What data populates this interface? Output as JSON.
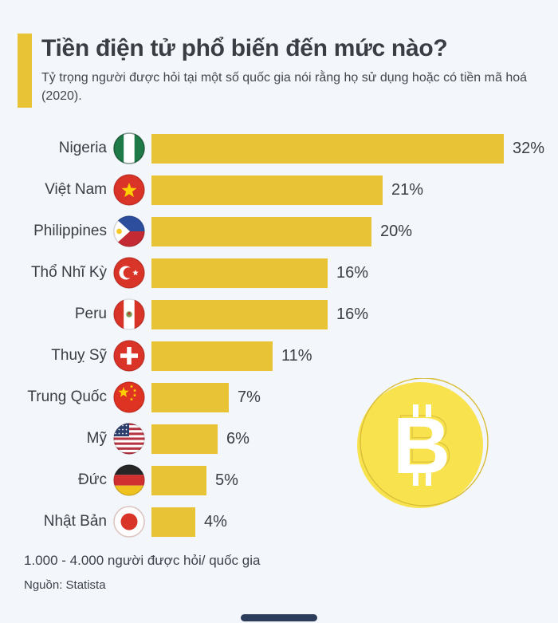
{
  "header": {
    "title": "Tiền điện tử phổ biến đến mức nào?",
    "subtitle": "Tỷ trọng người được hỏi tại một số quốc gia nói rằng họ sử dụng hoặc có tiền mã hoá (2020)."
  },
  "chart_data": {
    "type": "bar",
    "orientation": "horizontal",
    "title": "Tiền điện tử phổ biến đến mức nào?",
    "subtitle": "Tỷ trọng người được hỏi tại một số quốc gia nói rằng họ sử dụng hoặc có tiền mã hoá (2020).",
    "categories": [
      "Nigeria",
      "Việt Nam",
      "Philippines",
      "Thổ Nhĩ Kỳ",
      "Peru",
      "Thuỵ Sỹ",
      "Trung Quốc",
      "Mỹ",
      "Đức",
      "Nhật Bản"
    ],
    "values": [
      32,
      21,
      20,
      16,
      16,
      11,
      7,
      6,
      5,
      4
    ],
    "value_labels": [
      "32%",
      "21%",
      "20%",
      "16%",
      "16%",
      "11%",
      "7%",
      "6%",
      "5%",
      "4%"
    ],
    "flags": [
      "nigeria",
      "vietnam",
      "philippines",
      "turkey",
      "peru",
      "switzerland",
      "china",
      "usa",
      "germany",
      "japan"
    ],
    "unit": "%",
    "xlim": [
      0,
      32
    ],
    "grid": false,
    "legend": "none",
    "bar_color": "#e9c336"
  },
  "decor": {
    "bitcoin_coin": {
      "icon": "bitcoin-coin-icon",
      "symbol": "B",
      "fill": "#f8e34f",
      "outline": "#d9bc37",
      "glyph_color": "#ffffff"
    }
  },
  "footer": {
    "note": "1.000 - 4.000 người được hỏi/ quốc gia",
    "source": "Nguồn: Statista"
  },
  "colors": {
    "background": "#f3f6fb",
    "accent_yellow": "#e9c336",
    "text_dark": "#3a3d44",
    "home_indicator": "#2c3d5c"
  }
}
